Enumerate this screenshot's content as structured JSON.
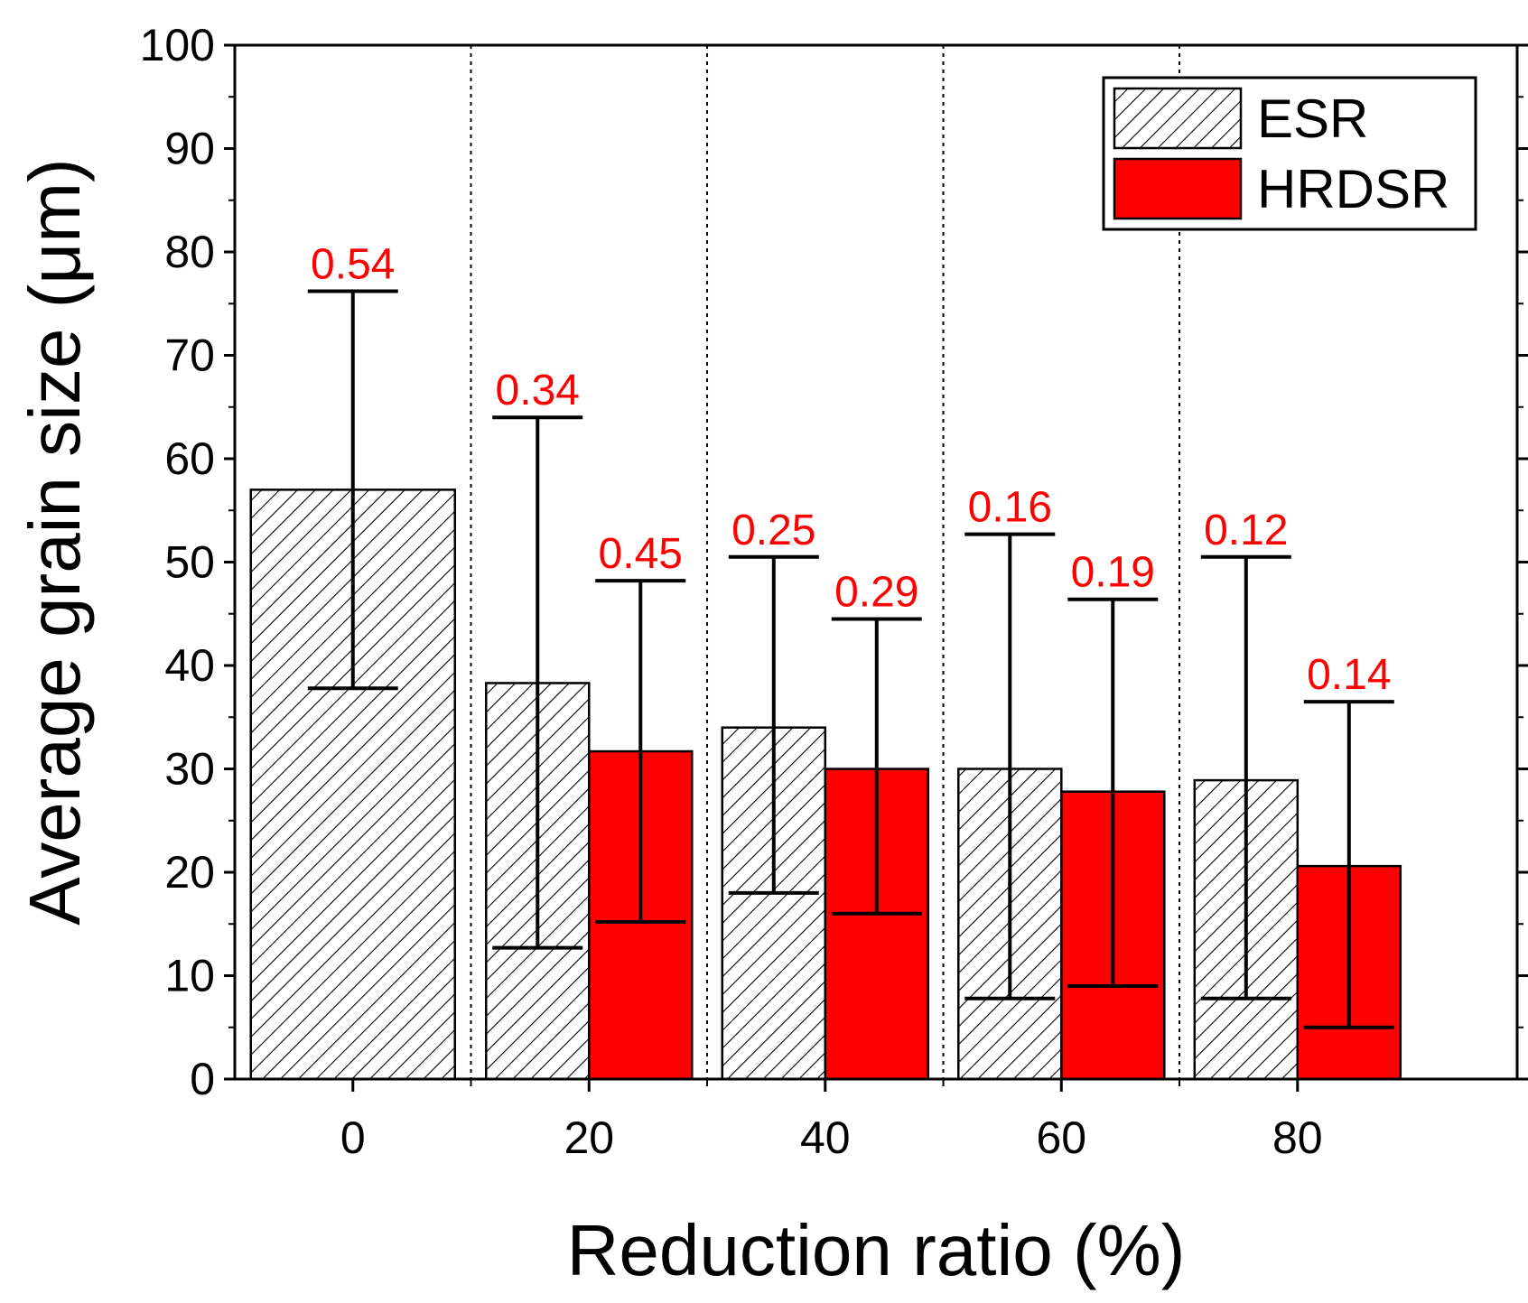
{
  "chart_data": {
    "type": "bar",
    "xlabel": "Reduction ratio (%)",
    "ylabel": "Average grain size (μm)",
    "ylim": [
      0,
      100
    ],
    "yticks": [
      "0",
      "10",
      "20",
      "30",
      "40",
      "50",
      "60",
      "70",
      "80",
      "90",
      "100"
    ],
    "categories": [
      "0",
      "20",
      "40",
      "60",
      "80"
    ],
    "grid": "dotted vertical separators between groups",
    "legend_position": "top-right",
    "series": [
      {
        "name": "ESR",
        "pattern": "hatched",
        "values": [
          57,
          38.3,
          34,
          30,
          28.9
        ],
        "err_low": [
          37.8,
          12.7,
          18,
          7.8,
          7.8
        ],
        "err_high": [
          76.2,
          64,
          50.5,
          52.7,
          50.5
        ],
        "cv_labels": [
          "0.54",
          "0.34",
          "0.25",
          "0.16",
          "0.12"
        ]
      },
      {
        "name": "HRDSR",
        "color": "#ff0000",
        "values": [
          null,
          31.7,
          30,
          27.8,
          20.6
        ],
        "err_low": [
          null,
          15.2,
          16,
          9,
          5
        ],
        "err_high": [
          null,
          48.2,
          44.5,
          46.4,
          36.5
        ],
        "cv_labels": [
          null,
          "0.45",
          "0.29",
          "0.19",
          "0.14"
        ]
      }
    ]
  },
  "colors": {
    "hrdsr_fill": "#ff0000",
    "cv_label": "#ff0000",
    "axis": "#000000"
  }
}
